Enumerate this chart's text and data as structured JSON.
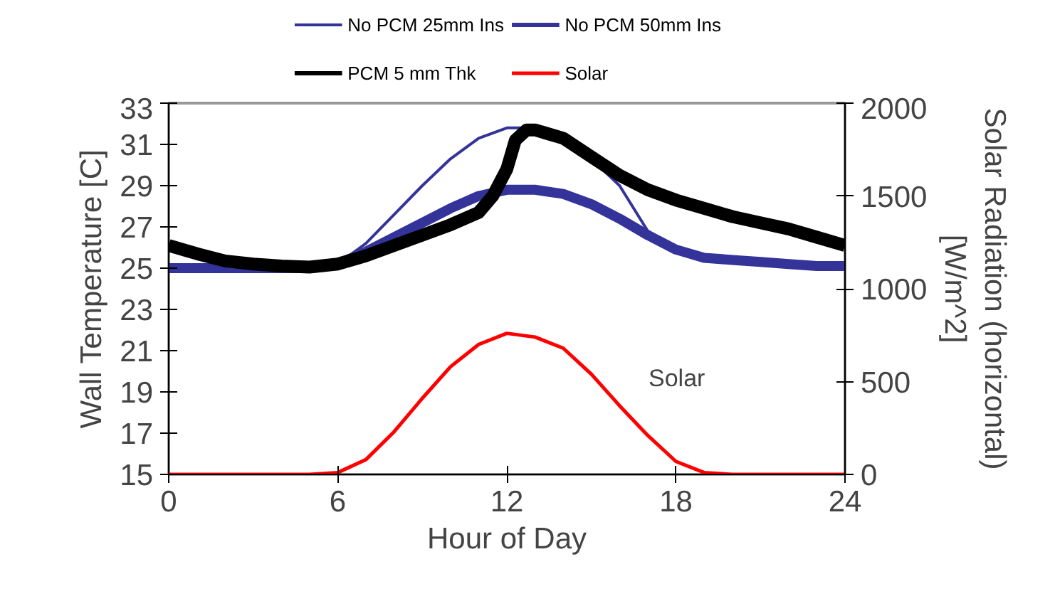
{
  "chart_data": {
    "type": "line",
    "xlabel": "Hour of Day",
    "ylabel": "Wall Temperature [C]",
    "y2label": "Solar Radiation (horizontal)\n[W/m^2]",
    "x": [
      0,
      1,
      2,
      3,
      4,
      5,
      6,
      7,
      8,
      9,
      10,
      11,
      12,
      13,
      14,
      15,
      16,
      17,
      18,
      19,
      20,
      21,
      22,
      23,
      24
    ],
    "series": [
      {
        "name": "No PCM 25mm Ins",
        "color": "#333399",
        "values": [
          25.1,
          25.1,
          25.1,
          25.05,
          25.0,
          25.0,
          25.2,
          26.2,
          27.6,
          29.0,
          30.3,
          31.3,
          31.8,
          31.8,
          31.3,
          30.3,
          29.0,
          26.8,
          25.9,
          25.6,
          25.4,
          25.3,
          25.2,
          25.1,
          25.1
        ]
      },
      {
        "name": "No PCM 50mm Ins",
        "color": "#333399",
        "values": [
          25.0,
          25.0,
          25.0,
          25.0,
          25.0,
          25.0,
          25.2,
          25.8,
          26.5,
          27.2,
          27.9,
          28.5,
          28.8,
          28.8,
          28.6,
          28.1,
          27.4,
          26.6,
          25.9,
          25.5,
          25.4,
          25.3,
          25.2,
          25.1,
          25.1
        ]
      },
      {
        "name": "PCM 5 mm Thk",
        "color": "#000000",
        "x": [
          0,
          1,
          2,
          3,
          4,
          5,
          6,
          7,
          8,
          9,
          10,
          11,
          11.5,
          12,
          12.3,
          12.7,
          13,
          14,
          15,
          16,
          17,
          18,
          19,
          20,
          21,
          22,
          23,
          24
        ],
        "values": [
          26.1,
          25.7,
          25.35,
          25.2,
          25.1,
          25.05,
          25.2,
          25.6,
          26.1,
          26.6,
          27.1,
          27.7,
          28.5,
          29.8,
          31.2,
          31.7,
          31.7,
          31.3,
          30.4,
          29.5,
          28.8,
          28.3,
          27.9,
          27.5,
          27.2,
          26.9,
          26.5,
          26.1
        ]
      },
      {
        "name": "Solar",
        "color": "#ff0000",
        "axis": "y2",
        "values": [
          0,
          0,
          0,
          0,
          0,
          0,
          10,
          80,
          230,
          410,
          580,
          700,
          760,
          740,
          680,
          540,
          370,
          210,
          70,
          10,
          0,
          0,
          0,
          0,
          0
        ]
      }
    ],
    "xlim": [
      0,
      24
    ],
    "xticks": [
      0,
      6,
      12,
      18,
      24
    ],
    "ylim": [
      15,
      33
    ],
    "yticks": [
      15,
      17,
      19,
      21,
      23,
      25,
      27,
      29,
      31,
      33
    ],
    "y2lim": [
      0,
      2000
    ],
    "y2ticks": [
      0,
      500,
      1000,
      1500,
      2000
    ],
    "annotations": [
      "Solar"
    ],
    "legend": "top",
    "grid": false,
    "marker": "none",
    "line_style": "solid"
  }
}
